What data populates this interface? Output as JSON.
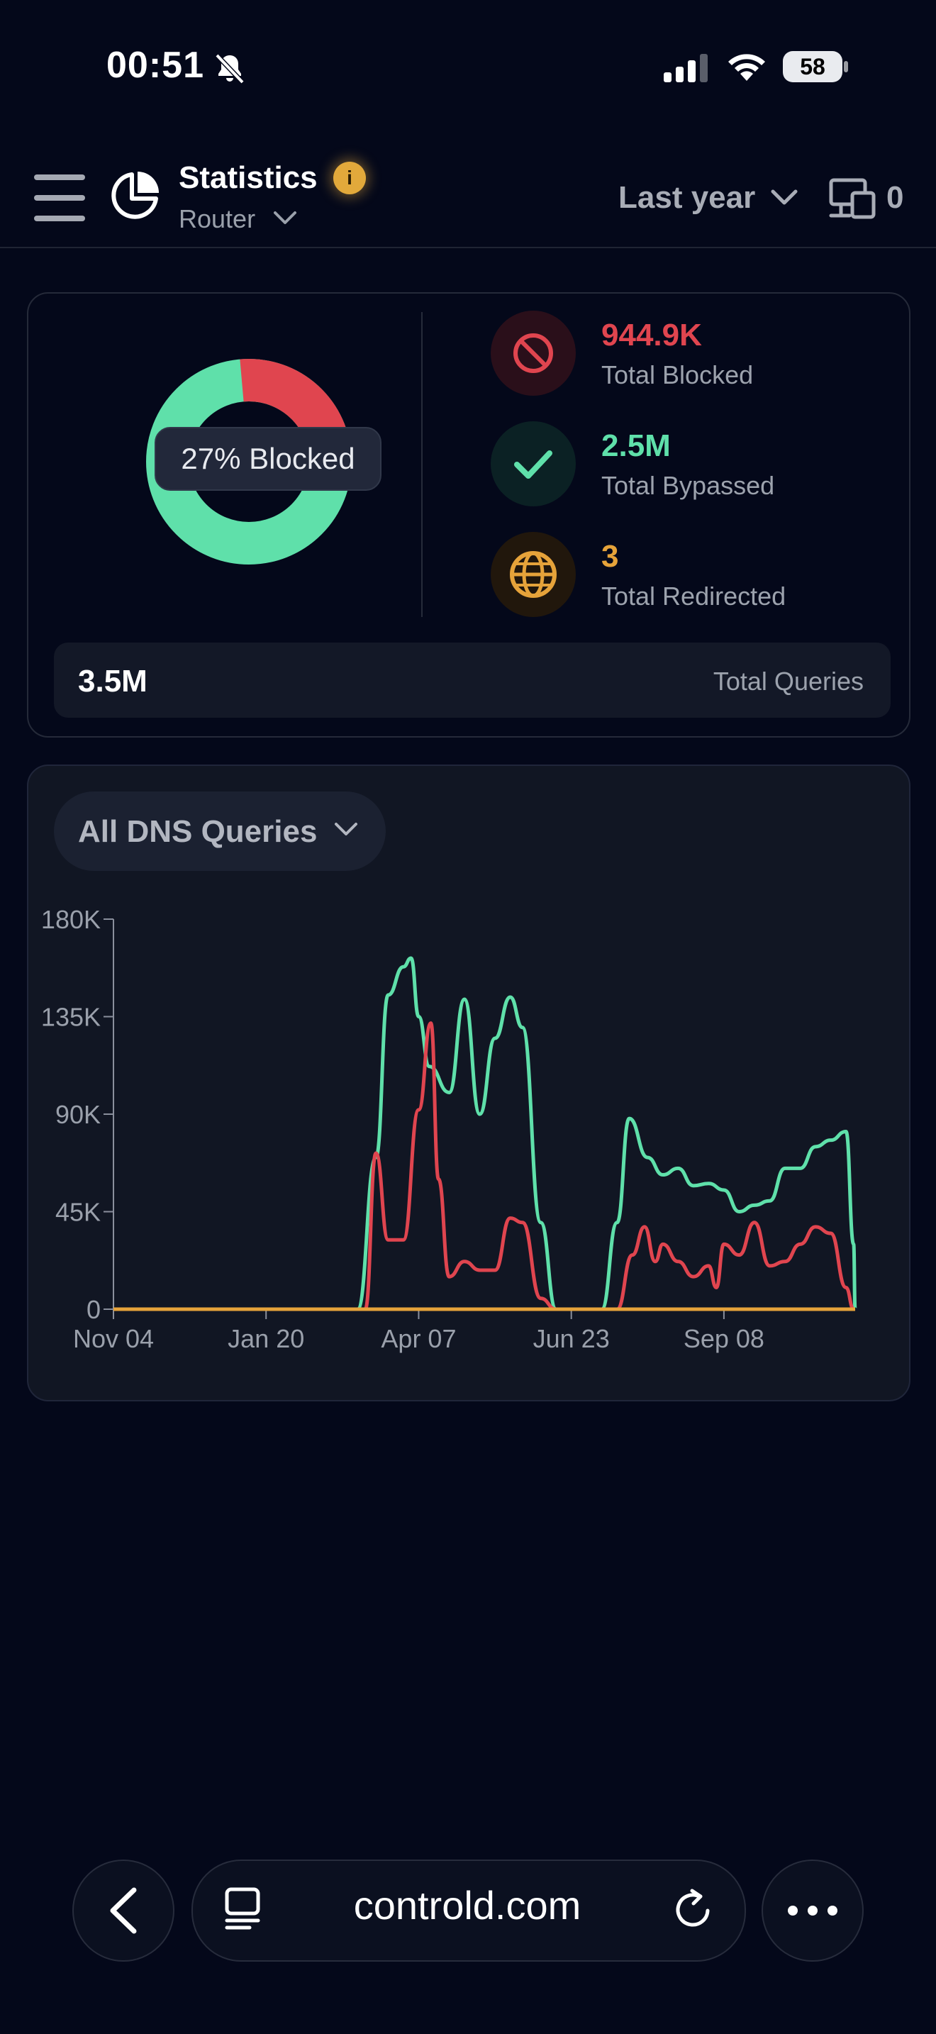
{
  "status_bar": {
    "time": "00:51",
    "battery": "58"
  },
  "header": {
    "title": "Statistics",
    "subtitle": "Router",
    "time_range": "Last year",
    "device_count": "0"
  },
  "summary": {
    "donut_label": "27% Blocked",
    "blocked_fraction": 0.27,
    "stats": [
      {
        "value": "944.9K",
        "label": "Total Blocked",
        "color": "#e0454f",
        "icon": "blocked-icon"
      },
      {
        "value": "2.5M",
        "label": "Total Bypassed",
        "color": "#5fe0aa",
        "icon": "check-icon"
      },
      {
        "value": "3",
        "label": "Total Redirected",
        "color": "#e6a33a",
        "icon": "globe-icon"
      }
    ],
    "total_queries": {
      "value": "3.5M",
      "label": "Total Queries"
    }
  },
  "chart": {
    "filter_label": "All DNS Queries"
  },
  "chart_data": {
    "type": "line",
    "ylim": [
      0,
      180000
    ],
    "yticks": [
      "0",
      "45K",
      "90K",
      "135K",
      "180K"
    ],
    "xticks": [
      "Nov 04",
      "Jan 20",
      "Apr 07",
      "Jun 23",
      "Sep 08"
    ],
    "x_units": "weeks since Nov 04",
    "series": [
      {
        "color": "#5fe0aa",
        "points": [
          [
            0,
            0
          ],
          [
            16,
            0
          ],
          [
            17.2,
            70000
          ],
          [
            18,
            145000
          ],
          [
            19,
            158000
          ],
          [
            19.5,
            162000
          ],
          [
            20,
            135000
          ],
          [
            20.7,
            112000
          ],
          [
            22,
            100000
          ],
          [
            23,
            143000
          ],
          [
            24,
            90000
          ],
          [
            25,
            125000
          ],
          [
            26,
            144000
          ],
          [
            26.8,
            130000
          ],
          [
            28,
            40000
          ],
          [
            29,
            0
          ],
          [
            32,
            0
          ],
          [
            33,
            40000
          ],
          [
            33.8,
            88000
          ],
          [
            35,
            70000
          ],
          [
            36,
            62000
          ],
          [
            37,
            65000
          ],
          [
            38,
            57000
          ],
          [
            39,
            58000
          ],
          [
            40,
            55000
          ],
          [
            41,
            45000
          ],
          [
            42,
            48000
          ],
          [
            43,
            50000
          ],
          [
            44,
            65000
          ],
          [
            45,
            65000
          ],
          [
            46,
            75000
          ],
          [
            47,
            78000
          ],
          [
            48,
            82000
          ],
          [
            48.5,
            30000
          ],
          [
            48.6,
            0
          ]
        ]
      },
      {
        "color": "#e0454f",
        "points": [
          [
            0,
            0
          ],
          [
            16.5,
            0
          ],
          [
            17.2,
            72000
          ],
          [
            18,
            32000
          ],
          [
            19,
            32000
          ],
          [
            20,
            92000
          ],
          [
            20.8,
            132000
          ],
          [
            21.3,
            60000
          ],
          [
            22,
            15000
          ],
          [
            23,
            22000
          ],
          [
            24,
            18000
          ],
          [
            25,
            18000
          ],
          [
            26,
            42000
          ],
          [
            26.8,
            40000
          ],
          [
            28,
            5000
          ],
          [
            29,
            0
          ],
          [
            33,
            0
          ],
          [
            34,
            25000
          ],
          [
            34.8,
            38000
          ],
          [
            35.5,
            22000
          ],
          [
            36,
            30000
          ],
          [
            37,
            22000
          ],
          [
            38,
            15000
          ],
          [
            39,
            20000
          ],
          [
            39.5,
            10000
          ],
          [
            40,
            30000
          ],
          [
            41,
            25000
          ],
          [
            42,
            40000
          ],
          [
            43,
            20000
          ],
          [
            44,
            22000
          ],
          [
            45,
            30000
          ],
          [
            46,
            38000
          ],
          [
            47,
            35000
          ],
          [
            48,
            10000
          ],
          [
            48.5,
            0
          ]
        ]
      },
      {
        "color": "#e6a33a",
        "points": [
          [
            0,
            0
          ],
          [
            48.6,
            0
          ]
        ]
      }
    ]
  },
  "browser": {
    "url": "controld.com"
  }
}
